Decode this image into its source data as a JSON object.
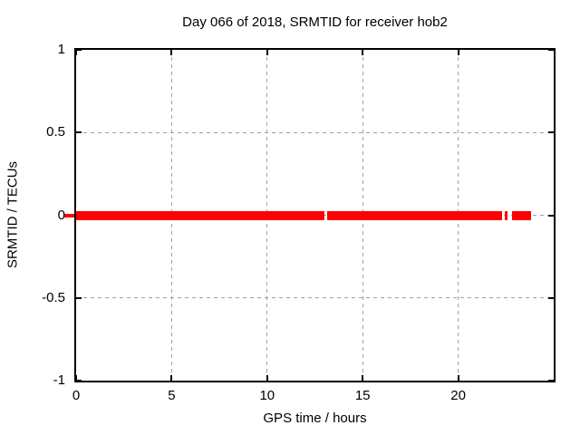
{
  "window": {
    "background": "#ffffff"
  },
  "chart_data": {
    "type": "scatter",
    "title": "Day 066 of 2018, SRMTID for receiver hob2",
    "xlabel": "GPS time / hours",
    "ylabel": "SRMTID / TECUs",
    "xlim": [
      0,
      25
    ],
    "ylim": [
      -1,
      1
    ],
    "xticks": [
      0,
      5,
      10,
      15,
      20
    ],
    "xtick_labels": [
      "0",
      "5",
      "10",
      "15",
      "20"
    ],
    "yticks": [
      1,
      0.5,
      0,
      -0.5,
      -1
    ],
    "ytick_labels": [
      "1",
      "0.5",
      "0",
      "-0.5",
      "-1"
    ],
    "grid": true,
    "legend": "none",
    "series": [
      {
        "name": "SRMTID",
        "color": "#ff0000",
        "value": 0,
        "note": "flat band at y=0 drawn with fat points; gaps where no data",
        "segments_hours": [
          [
            0.0,
            13.0
          ],
          [
            13.15,
            22.3
          ],
          [
            22.46,
            22.6
          ],
          [
            22.8,
            23.8
          ]
        ],
        "band_thickness_px": 10
      }
    ],
    "decorations": {
      "zero_point_overhang_left": true
    },
    "colors": {
      "grid": "#a0a0a0",
      "border": "#000000",
      "text": "#000000",
      "data": "#ff0000"
    }
  }
}
